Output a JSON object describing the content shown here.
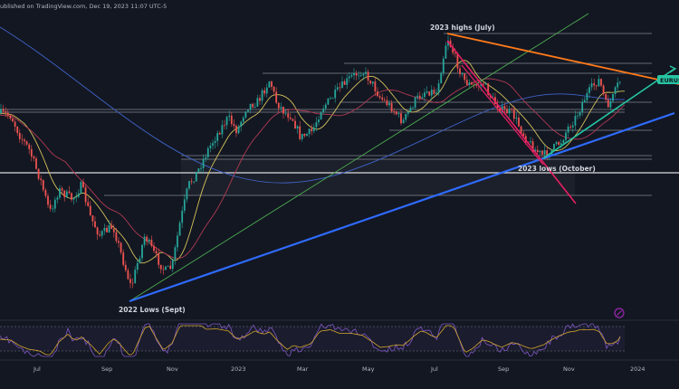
{
  "header": {
    "text": "ublished on TradingView.com, Dec 19, 2023 11:07 UTC-5"
  },
  "symbol_label": "EURUSD",
  "annotations": {
    "highs_2023": "2023 highs (July)",
    "lows_2023": "2023 lows (October)",
    "lows_2022": "2022 Lows (Sept)"
  },
  "colors": {
    "background": "#131722",
    "up_candle": "#26a69a",
    "down_candle": "#ef5350",
    "ma_fast": "#d4c25a",
    "ma_mid": "#b03a52",
    "ma_slow": "#3f63c7",
    "trend_green": "#4caf50",
    "trend_orange": "#ff7a1a",
    "trend_blue": "#2f6bff",
    "channel_pink": "#e91e63",
    "channel_teal": "#26c6a3",
    "oscillator": "#7e57c2",
    "oscillator_signal": "#d4a72c"
  },
  "chart_data": {
    "type": "candlestick",
    "title": "",
    "xlabel": "",
    "ylabel": "",
    "x_ticks": [
      "Jul",
      "Sep",
      "Nov",
      "2023",
      "Mar",
      "May",
      "Jul",
      "Sep",
      "Nov",
      "2024"
    ],
    "grid": false,
    "indicators": [
      "moving average (fast)",
      "moving average (medium)",
      "moving average (slow)",
      "oscillator"
    ],
    "key_points": [
      {
        "label": "2022 Lows (Sept)"
      },
      {
        "label": "2023 highs (July)"
      },
      {
        "label": "2023 lows (October)"
      }
    ]
  }
}
